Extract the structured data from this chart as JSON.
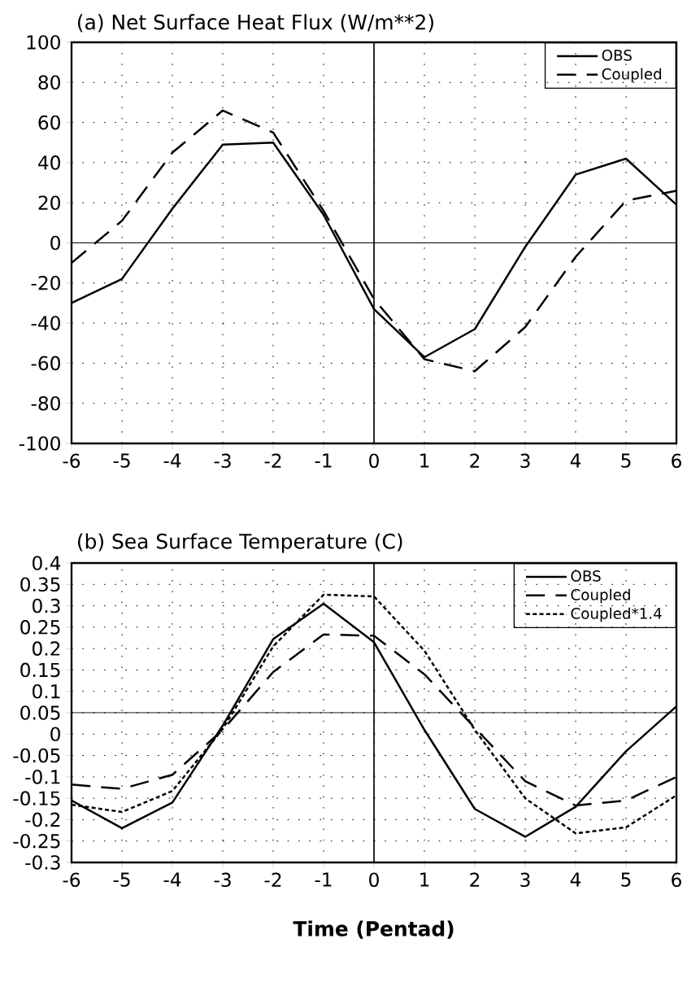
{
  "chart_data": [
    {
      "type": "line",
      "title": "(a) Net Surface Heat Flux (W/m**2)",
      "x": [
        -6,
        -5,
        -4,
        -3,
        -2,
        -1,
        0,
        1,
        2,
        3,
        4,
        5,
        6
      ],
      "xlim": [
        -6,
        6
      ],
      "xticks": [
        -6,
        -5,
        -4,
        -3,
        -2,
        -1,
        0,
        1,
        2,
        3,
        4,
        5,
        6
      ],
      "ylim": [
        -100,
        100
      ],
      "yticks": [
        -100,
        -80,
        -60,
        -40,
        -20,
        0,
        20,
        40,
        60,
        80,
        100
      ],
      "grid": true,
      "legend": "top right",
      "ref_lines": [
        {
          "axis": "y",
          "value": 0
        },
        {
          "axis": "x",
          "value": 0
        }
      ],
      "series": [
        {
          "name": "OBS",
          "color": "#000000",
          "line_style": "solid",
          "values": [
            -30,
            -18,
            17,
            49,
            50,
            14,
            -33,
            -57,
            -43,
            -2,
            34,
            42,
            19
          ]
        },
        {
          "name": "Coupled",
          "color": "#000000",
          "line_style": "dashed",
          "values": [
            -10,
            11,
            45,
            66,
            55,
            16,
            -28,
            -58,
            -64,
            -42,
            -7,
            21,
            26
          ]
        }
      ]
    },
    {
      "type": "line",
      "title": "(b) Sea Surface Temperature (C)",
      "xlabel": "Time (Pentad)",
      "x": [
        -6,
        -5,
        -4,
        -3,
        -2,
        -1,
        0,
        1,
        2,
        3,
        4,
        5,
        6
      ],
      "xlim": [
        -6,
        6
      ],
      "xticks": [
        -6,
        -5,
        -4,
        -3,
        -2,
        -1,
        0,
        1,
        2,
        3,
        4,
        5,
        6
      ],
      "ylim": [
        -0.3,
        0.4
      ],
      "yticks": [
        -0.3,
        -0.25,
        -0.2,
        -0.15,
        -0.1,
        -0.05,
        0,
        0.05,
        0.1,
        0.15,
        0.2,
        0.25,
        0.3,
        0.35,
        0.4
      ],
      "grid": true,
      "legend": "top right",
      "ref_lines": [
        {
          "axis": "y",
          "value": 0.05
        },
        {
          "axis": "x",
          "value": 0
        }
      ],
      "series": [
        {
          "name": "OBS",
          "color": "#000000",
          "line_style": "solid",
          "values": [
            -0.155,
            -0.22,
            -0.16,
            0.02,
            0.222,
            0.305,
            0.215,
            0.01,
            -0.175,
            -0.24,
            -0.17,
            -0.04,
            0.065
          ]
        },
        {
          "name": "Coupled",
          "color": "#000000",
          "line_style": "dashed",
          "values": [
            -0.118,
            -0.128,
            -0.095,
            0.01,
            0.145,
            0.233,
            0.23,
            0.14,
            0.015,
            -0.11,
            -0.167,
            -0.155,
            -0.1
          ]
        },
        {
          "name": "Coupled*1.4",
          "color": "#000000",
          "line_style": "dotted",
          "values": [
            -0.165,
            -0.182,
            -0.133,
            0.012,
            0.205,
            0.326,
            0.322,
            0.195,
            0.01,
            -0.15,
            -0.232,
            -0.218,
            -0.143
          ]
        }
      ]
    }
  ]
}
